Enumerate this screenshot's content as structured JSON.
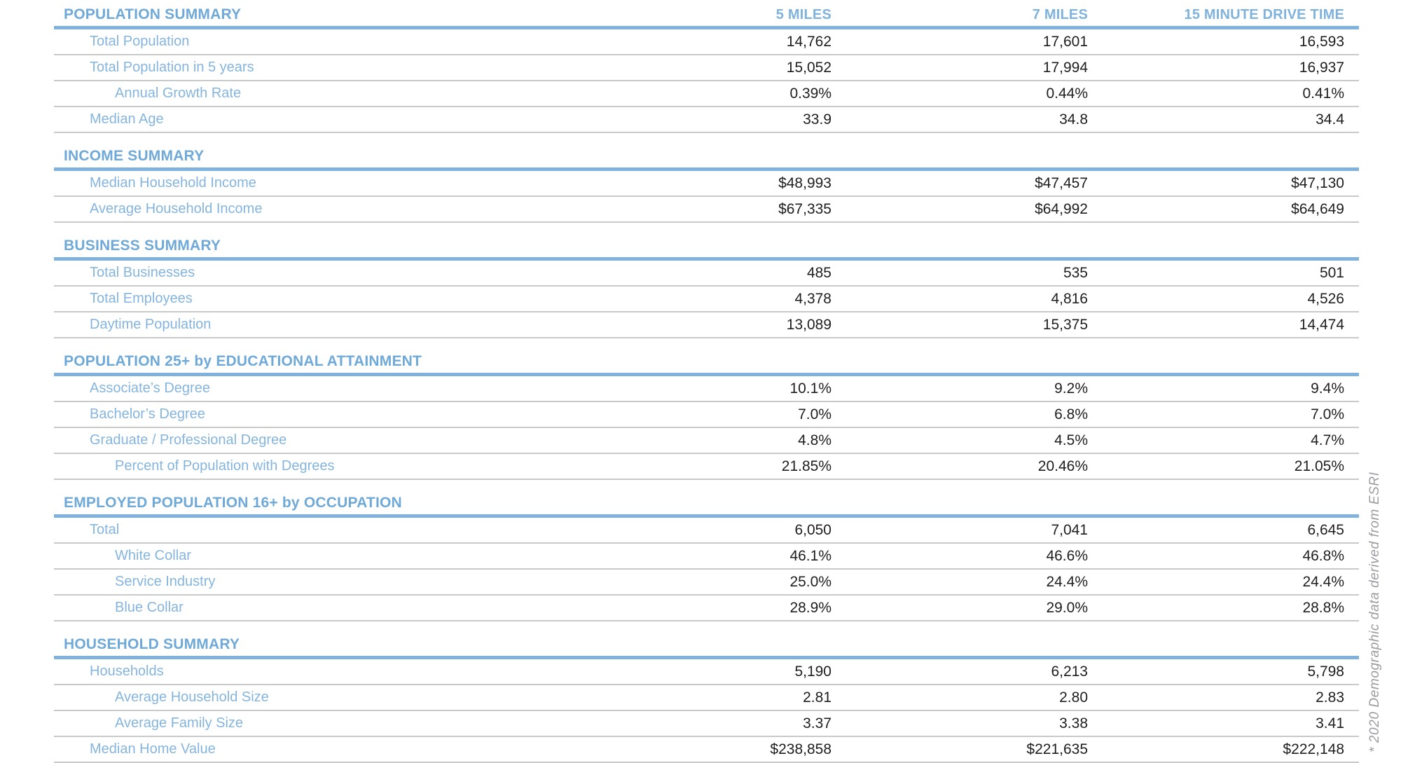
{
  "columns": [
    "5 MILES",
    "7 MILES",
    "15 MINUTE DRIVE TIME"
  ],
  "footnote": "* 2020 Demographic data derived from ESRI",
  "colors": {
    "accent_blue": "#7FB2DC",
    "header_blue": "#6FA9D8",
    "label_blue": "#85B5DE",
    "divider_gray": "#C9C9C9",
    "value_text": "#1E1E1E",
    "footnote_gray": "#9B9BA1"
  },
  "sections": [
    {
      "title": "POPULATION SUMMARY",
      "rows": [
        {
          "label": "Total Population",
          "indent": 0,
          "values": [
            "14,762",
            "17,601",
            "16,593"
          ]
        },
        {
          "label": "Total Population in 5 years",
          "indent": 0,
          "values": [
            "15,052",
            "17,994",
            "16,937"
          ]
        },
        {
          "label": "Annual Growth Rate",
          "indent": 1,
          "values": [
            "0.39%",
            "0.44%",
            "0.41%"
          ]
        },
        {
          "label": "Median Age",
          "indent": 0,
          "values": [
            "33.9",
            "34.8",
            "34.4"
          ]
        }
      ]
    },
    {
      "title": "INCOME SUMMARY",
      "rows": [
        {
          "label": "Median Household Income",
          "indent": 0,
          "values": [
            "$48,993",
            "$47,457",
            "$47,130"
          ]
        },
        {
          "label": "Average Household Income",
          "indent": 0,
          "values": [
            "$67,335",
            "$64,992",
            "$64,649"
          ]
        }
      ]
    },
    {
      "title": "BUSINESS SUMMARY",
      "rows": [
        {
          "label": "Total Businesses",
          "indent": 0,
          "values": [
            "485",
            "535",
            "501"
          ]
        },
        {
          "label": "Total Employees",
          "indent": 0,
          "values": [
            "4,378",
            "4,816",
            "4,526"
          ]
        },
        {
          "label": "Daytime Population",
          "indent": 0,
          "values": [
            "13,089",
            "15,375",
            "14,474"
          ]
        }
      ]
    },
    {
      "title": "POPULATION 25+ by EDUCATIONAL ATTAINMENT",
      "rows": [
        {
          "label": "Associate’s Degree",
          "indent": 0,
          "values": [
            "10.1%",
            "9.2%",
            "9.4%"
          ]
        },
        {
          "label": "Bachelor’s Degree",
          "indent": 0,
          "values": [
            "7.0%",
            "6.8%",
            "7.0%"
          ]
        },
        {
          "label": "Graduate / Professional Degree",
          "indent": 0,
          "values": [
            "4.8%",
            "4.5%",
            "4.7%"
          ]
        },
        {
          "label": "Percent of Population with Degrees",
          "indent": 1,
          "values": [
            "21.85%",
            "20.46%",
            "21.05%"
          ]
        }
      ]
    },
    {
      "title": "EMPLOYED POPULATION 16+ by OCCUPATION",
      "rows": [
        {
          "label": "Total",
          "indent": 0,
          "values": [
            "6,050",
            "7,041",
            "6,645"
          ]
        },
        {
          "label": "White Collar",
          "indent": 1,
          "values": [
            "46.1%",
            "46.6%",
            "46.8%"
          ]
        },
        {
          "label": "Service Industry",
          "indent": 1,
          "values": [
            "25.0%",
            "24.4%",
            "24.4%"
          ]
        },
        {
          "label": "Blue Collar",
          "indent": 1,
          "values": [
            "28.9%",
            "29.0%",
            "28.8%"
          ]
        }
      ]
    },
    {
      "title": "HOUSEHOLD SUMMARY",
      "rows": [
        {
          "label": "Households",
          "indent": 0,
          "values": [
            "5,190",
            "6,213",
            "5,798"
          ]
        },
        {
          "label": "Average Household Size",
          "indent": 1,
          "values": [
            "2.81",
            "2.80",
            "2.83"
          ]
        },
        {
          "label": "Average Family Size",
          "indent": 1,
          "values": [
            "3.37",
            "3.38",
            "3.41"
          ]
        },
        {
          "label": "Median Home Value",
          "indent": 0,
          "values": [
            "$238,858",
            "$221,635",
            "$222,148"
          ]
        }
      ]
    }
  ]
}
